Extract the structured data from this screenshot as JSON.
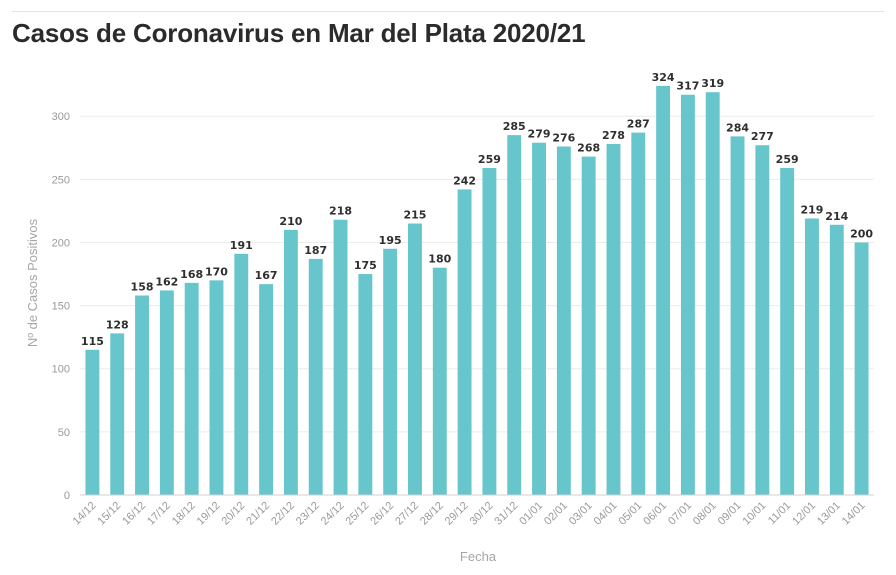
{
  "chart_data": {
    "type": "bar",
    "title": "Casos de Coronavirus en Mar del Plata 2020/21",
    "xlabel": "Fecha",
    "ylabel": "Nº de Casos Positivos",
    "ylim": [
      0,
      335
    ],
    "yticks": [
      0,
      50,
      100,
      150,
      200,
      250,
      300
    ],
    "grid": true,
    "legend": "none",
    "color": "#67c5cc",
    "categories": [
      "14/12",
      "15/12",
      "16/12",
      "17/12",
      "18/12",
      "19/12",
      "20/12",
      "21/12",
      "22/12",
      "23/12",
      "24/12",
      "25/12",
      "26/12",
      "27/12",
      "28/12",
      "29/12",
      "30/12",
      "31/12",
      "01/01",
      "02/01",
      "03/01",
      "04/01",
      "05/01",
      "06/01",
      "07/01",
      "08/01",
      "09/01",
      "10/01",
      "11/01",
      "12/01",
      "13/01",
      "14/01"
    ],
    "values": [
      115,
      128,
      158,
      162,
      168,
      170,
      191,
      167,
      210,
      187,
      218,
      175,
      195,
      215,
      180,
      242,
      259,
      285,
      279,
      276,
      268,
      278,
      287,
      324,
      317,
      319,
      284,
      277,
      259,
      219,
      214,
      200
    ]
  }
}
